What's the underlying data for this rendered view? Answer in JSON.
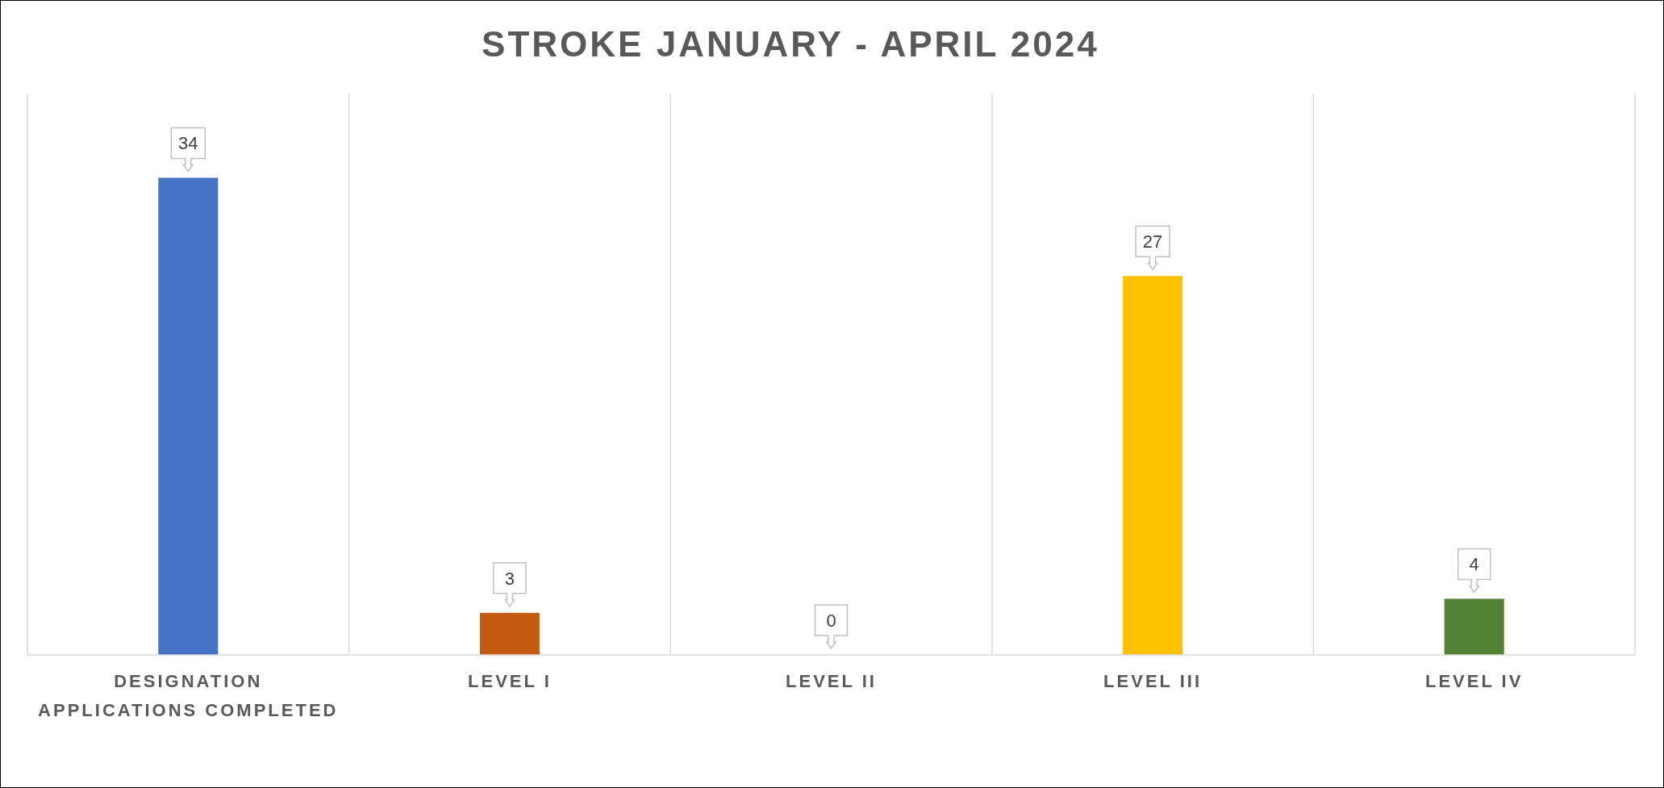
{
  "chart_data": {
    "type": "bar",
    "title": "STROKE JANUARY - APRIL 2024",
    "categories": [
      "DESIGNATION APPLICATIONS COMPLETED",
      "LEVEL I",
      "LEVEL II",
      "LEVEL III",
      "LEVEL IV"
    ],
    "values": [
      34,
      3,
      0,
      27,
      4
    ],
    "colors": [
      "#4472c4",
      "#c55a11",
      "#a5a5a5",
      "#ffc000",
      "#548235"
    ],
    "ylim": [
      0,
      40
    ],
    "grid": "x",
    "data_labels": true
  }
}
